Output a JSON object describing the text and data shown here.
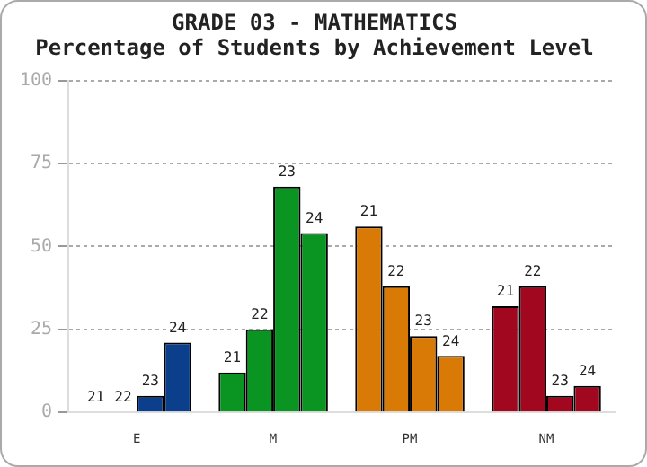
{
  "chart_data": {
    "type": "bar",
    "title": "GRADE 03 - MATHEMATICS",
    "subtitle": "Percentage of Students by Achievement Level",
    "categories": [
      "E",
      "M",
      "PM",
      "NM"
    ],
    "series": [
      {
        "name": "21",
        "colors": [
          "#0b3f8c",
          "#0a9422",
          "#d97a06",
          "#a10820"
        ],
        "values": [
          0,
          12,
          56,
          32
        ]
      },
      {
        "name": "22",
        "colors": [
          "#0b3f8c",
          "#0a9422",
          "#d97a06",
          "#a10820"
        ],
        "values": [
          0,
          25,
          38,
          38
        ]
      },
      {
        "name": "23",
        "colors": [
          "#0b3f8c",
          "#0a9422",
          "#d97a06",
          "#a10820"
        ],
        "values": [
          5,
          68,
          23,
          5
        ]
      },
      {
        "name": "24",
        "colors": [
          "#0b3f8c",
          "#0a9422",
          "#d97a06",
          "#a10820"
        ],
        "values": [
          21,
          54,
          17,
          8
        ]
      }
    ],
    "ylim": [
      0,
      100
    ],
    "yticks": [
      0,
      25,
      50,
      75,
      100
    ],
    "grid": "y",
    "legend": false
  }
}
